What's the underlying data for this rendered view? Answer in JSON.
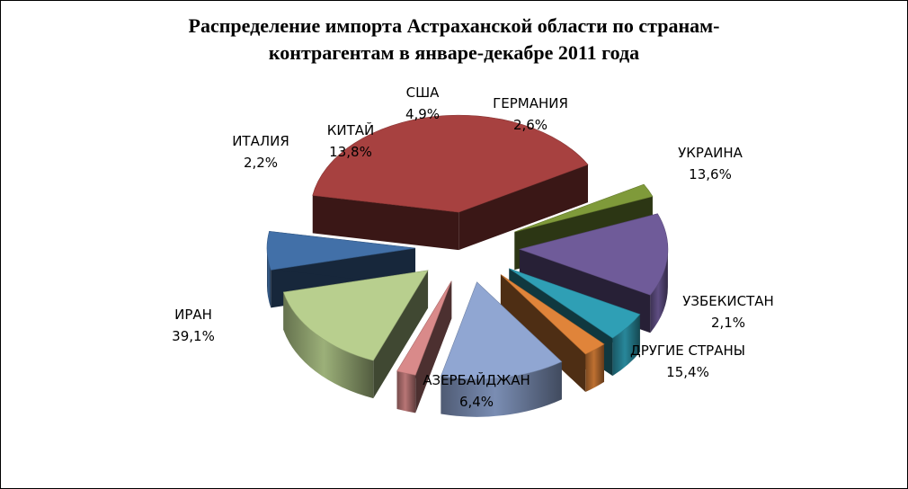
{
  "chart_data": {
    "type": "pie",
    "title_lines": [
      "Распределение импорта Астраханской области по странам-",
      "контрагентам в январе-декабре 2011 года"
    ],
    "slices": [
      {
        "label": "ИРАН",
        "percent_label": "39,1%",
        "value": 39.1,
        "color": "#a74140"
      },
      {
        "label": "ИТАЛИЯ",
        "percent_label": "2,2%",
        "value": 2.2,
        "color": "#7f9a3a"
      },
      {
        "label": "КИТАЙ",
        "percent_label": "13,8%",
        "value": 13.8,
        "color": "#6f5b99"
      },
      {
        "label": "США",
        "percent_label": "4,9%",
        "value": 4.9,
        "color": "#2f9fb5"
      },
      {
        "label": "ГЕРМАНИЯ",
        "percent_label": "2,6%",
        "value": 2.6,
        "color": "#e0843a"
      },
      {
        "label": "УКРАИНА",
        "percent_label": "13,6%",
        "value": 13.6,
        "color": "#90a6d2"
      },
      {
        "label": "УЗБЕКИСТАН",
        "percent_label": "2,1%",
        "value": 2.1,
        "color": "#d98a8a"
      },
      {
        "label": "ДРУГИЕ СТРАНЫ",
        "percent_label": "15,4%",
        "value": 15.4,
        "color": "#b8cf8e"
      },
      {
        "label": "АЗЕРБАЙДЖАН",
        "percent_label": "6,4%",
        "value": 6.4,
        "color": "#4270a8"
      }
    ],
    "style": "3d-exploded",
    "legend": "none"
  }
}
